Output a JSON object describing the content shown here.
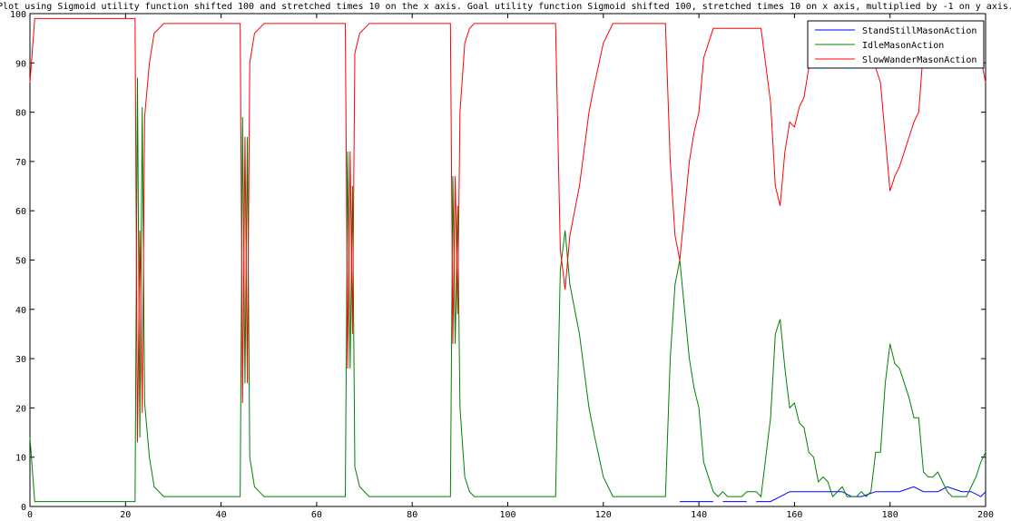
{
  "chart_data": {
    "type": "line",
    "title": "Plot using Sigmoid utility function shifted 100 and stretched times 10 on the x axis. Goal utility function Sigmoid shifted 100, stretched times 10 on x axis, multiplied by -1 on y axis.",
    "xlabel": "",
    "ylabel": "",
    "xlim": [
      0,
      200
    ],
    "ylim": [
      0,
      100
    ],
    "x_ticks": [
      0,
      20,
      40,
      60,
      80,
      100,
      120,
      140,
      160,
      180,
      200
    ],
    "y_ticks": [
      0,
      10,
      20,
      30,
      40,
      50,
      60,
      70,
      80,
      90,
      100
    ],
    "grid": false,
    "legend_position": "top-right",
    "series": [
      {
        "name": "StandStillMasonAction",
        "color": "#0000ff",
        "segments": [
          [
            [
              136,
              1
            ],
            [
              143,
              1
            ]
          ],
          [
            [
              145,
              1
            ],
            [
              150,
              1
            ]
          ],
          [
            [
              152,
              1
            ],
            [
              155,
              1
            ],
            [
              157,
              2
            ],
            [
              159,
              3
            ],
            [
              161,
              3
            ],
            [
              164,
              3
            ],
            [
              167,
              3
            ],
            [
              170,
              3
            ],
            [
              172,
              2
            ],
            [
              174,
              2
            ],
            [
              177,
              3
            ],
            [
              180,
              3
            ],
            [
              182,
              3
            ],
            [
              185,
              4
            ],
            [
              187,
              3
            ],
            [
              190,
              3
            ],
            [
              192,
              4
            ],
            [
              195,
              3
            ],
            [
              197,
              3
            ],
            [
              199,
              2
            ],
            [
              200,
              3
            ]
          ]
        ]
      },
      {
        "name": "IdleMasonAction",
        "color": "#008000",
        "points": [
          [
            0,
            14
          ],
          [
            1,
            1
          ],
          [
            5,
            1
          ],
          [
            10,
            1
          ],
          [
            15,
            1
          ],
          [
            20,
            1
          ],
          [
            22,
            1
          ],
          [
            22.5,
            87
          ],
          [
            23,
            14
          ],
          [
            23.5,
            81
          ],
          [
            24,
            21
          ],
          [
            25,
            10
          ],
          [
            26,
            4
          ],
          [
            27,
            3
          ],
          [
            28,
            2
          ],
          [
            30,
            2
          ],
          [
            35,
            2
          ],
          [
            40,
            2
          ],
          [
            44,
            2
          ],
          [
            44.5,
            79
          ],
          [
            45,
            25
          ],
          [
            45.5,
            75
          ],
          [
            46,
            10
          ],
          [
            47,
            4
          ],
          [
            48,
            3
          ],
          [
            49,
            2
          ],
          [
            55,
            2
          ],
          [
            60,
            2
          ],
          [
            66,
            2
          ],
          [
            66.5,
            72
          ],
          [
            67,
            28
          ],
          [
            67.5,
            65
          ],
          [
            68,
            8
          ],
          [
            69,
            4
          ],
          [
            70,
            3
          ],
          [
            71,
            2
          ],
          [
            75,
            2
          ],
          [
            80,
            2
          ],
          [
            88,
            2
          ],
          [
            88.5,
            67
          ],
          [
            89,
            33
          ],
          [
            89.5,
            61
          ],
          [
            90,
            20
          ],
          [
            91,
            6
          ],
          [
            92,
            3
          ],
          [
            93,
            2
          ],
          [
            100,
            2
          ],
          [
            110,
            2
          ],
          [
            111,
            48
          ],
          [
            112,
            56
          ],
          [
            113,
            45
          ],
          [
            115,
            35
          ],
          [
            117,
            20
          ],
          [
            118,
            15
          ],
          [
            120,
            6
          ],
          [
            121,
            4
          ],
          [
            122,
            2
          ],
          [
            125,
            2
          ],
          [
            130,
            2
          ],
          [
            133,
            2
          ],
          [
            134,
            30
          ],
          [
            135,
            45
          ],
          [
            136,
            50
          ],
          [
            137,
            40
          ],
          [
            138,
            30
          ],
          [
            139,
            24
          ],
          [
            140,
            20
          ],
          [
            141,
            9
          ],
          [
            142,
            6
          ],
          [
            143,
            3
          ],
          [
            144,
            2
          ],
          [
            145,
            3
          ],
          [
            146,
            2
          ],
          [
            148,
            2
          ],
          [
            149,
            2
          ],
          [
            150,
            3
          ],
          [
            152,
            3
          ],
          [
            153,
            2
          ],
          [
            155,
            18
          ],
          [
            156,
            35
          ],
          [
            157,
            38
          ],
          [
            158,
            28
          ],
          [
            159,
            20
          ],
          [
            160,
            21
          ],
          [
            161,
            17
          ],
          [
            162,
            16
          ],
          [
            163,
            11
          ],
          [
            164,
            10
          ],
          [
            165,
            5
          ],
          [
            166,
            6
          ],
          [
            167,
            5
          ],
          [
            168,
            2
          ],
          [
            169,
            3
          ],
          [
            170,
            4
          ],
          [
            171,
            2
          ],
          [
            173,
            2
          ],
          [
            174,
            3
          ],
          [
            175,
            2
          ],
          [
            176,
            3
          ],
          [
            177,
            11
          ],
          [
            178,
            11
          ],
          [
            179,
            25
          ],
          [
            180,
            33
          ],
          [
            181,
            29
          ],
          [
            182,
            28
          ],
          [
            183,
            25
          ],
          [
            184,
            22
          ],
          [
            185,
            18
          ],
          [
            186,
            18
          ],
          [
            187,
            7
          ],
          [
            188,
            6
          ],
          [
            189,
            6
          ],
          [
            190,
            7
          ],
          [
            191,
            5
          ],
          [
            192,
            3
          ],
          [
            193,
            2
          ],
          [
            194,
            2
          ],
          [
            195,
            2
          ],
          [
            196,
            2
          ],
          [
            197,
            4
          ],
          [
            198,
            6
          ],
          [
            199,
            9
          ],
          [
            200,
            11
          ]
        ]
      },
      {
        "name": "SlowWanderMasonAction",
        "color": "#ff0000",
        "points": [
          [
            0,
            86
          ],
          [
            1,
            99
          ],
          [
            5,
            99
          ],
          [
            10,
            99
          ],
          [
            15,
            99
          ],
          [
            20,
            99
          ],
          [
            22,
            99
          ],
          [
            22.5,
            13
          ],
          [
            23,
            56
          ],
          [
            23.5,
            19
          ],
          [
            24,
            79
          ],
          [
            25,
            90
          ],
          [
            26,
            96
          ],
          [
            27,
            97
          ],
          [
            28,
            98
          ],
          [
            30,
            98
          ],
          [
            35,
            98
          ],
          [
            40,
            98
          ],
          [
            44,
            98
          ],
          [
            44.5,
            21
          ],
          [
            45,
            75
          ],
          [
            45.5,
            25
          ],
          [
            46,
            90
          ],
          [
            47,
            96
          ],
          [
            48,
            97
          ],
          [
            49,
            98
          ],
          [
            55,
            98
          ],
          [
            60,
            98
          ],
          [
            66,
            98
          ],
          [
            66.5,
            28
          ],
          [
            67,
            72
          ],
          [
            67.5,
            35
          ],
          [
            68,
            92
          ],
          [
            69,
            96
          ],
          [
            70,
            97
          ],
          [
            71,
            98
          ],
          [
            75,
            98
          ],
          [
            80,
            98
          ],
          [
            88,
            98
          ],
          [
            88.5,
            33
          ],
          [
            89,
            67
          ],
          [
            89.5,
            39
          ],
          [
            90,
            80
          ],
          [
            91,
            94
          ],
          [
            92,
            97
          ],
          [
            93,
            98
          ],
          [
            100,
            98
          ],
          [
            110,
            98
          ],
          [
            111,
            52
          ],
          [
            112,
            44
          ],
          [
            113,
            55
          ],
          [
            115,
            65
          ],
          [
            117,
            80
          ],
          [
            118,
            85
          ],
          [
            120,
            94
          ],
          [
            121,
            96
          ],
          [
            122,
            98
          ],
          [
            125,
            98
          ],
          [
            130,
            98
          ],
          [
            133,
            98
          ],
          [
            134,
            70
          ],
          [
            135,
            55
          ],
          [
            136,
            50
          ],
          [
            137,
            60
          ],
          [
            138,
            70
          ],
          [
            139,
            76
          ],
          [
            140,
            80
          ],
          [
            141,
            91
          ],
          [
            142,
            94
          ],
          [
            143,
            97
          ],
          [
            145,
            97
          ],
          [
            148,
            97
          ],
          [
            150,
            97
          ],
          [
            152,
            97
          ],
          [
            153,
            97
          ],
          [
            155,
            82
          ],
          [
            156,
            65
          ],
          [
            157,
            61
          ],
          [
            158,
            72
          ],
          [
            159,
            78
          ],
          [
            160,
            77
          ],
          [
            161,
            81
          ],
          [
            162,
            83
          ],
          [
            163,
            89
          ],
          [
            164,
            90
          ],
          [
            165,
            95
          ],
          [
            166,
            94
          ],
          [
            167,
            95
          ],
          [
            168,
            98
          ],
          [
            169,
            97
          ],
          [
            170,
            96
          ],
          [
            171,
            98
          ],
          [
            173,
            98
          ],
          [
            174,
            97
          ],
          [
            175,
            98
          ],
          [
            176,
            97
          ],
          [
            177,
            89
          ],
          [
            178,
            86
          ],
          [
            179,
            75
          ],
          [
            180,
            64
          ],
          [
            181,
            67
          ],
          [
            182,
            69
          ],
          [
            183,
            72
          ],
          [
            184,
            75
          ],
          [
            185,
            78
          ],
          [
            186,
            80
          ],
          [
            187,
            93
          ],
          [
            188,
            94
          ],
          [
            189,
            94
          ],
          [
            190,
            93
          ],
          [
            191,
            95
          ],
          [
            192,
            97
          ],
          [
            193,
            98
          ],
          [
            195,
            98
          ],
          [
            196,
            98
          ],
          [
            197,
            96
          ],
          [
            198,
            94
          ],
          [
            199,
            91
          ],
          [
            200,
            86
          ]
        ]
      }
    ]
  }
}
